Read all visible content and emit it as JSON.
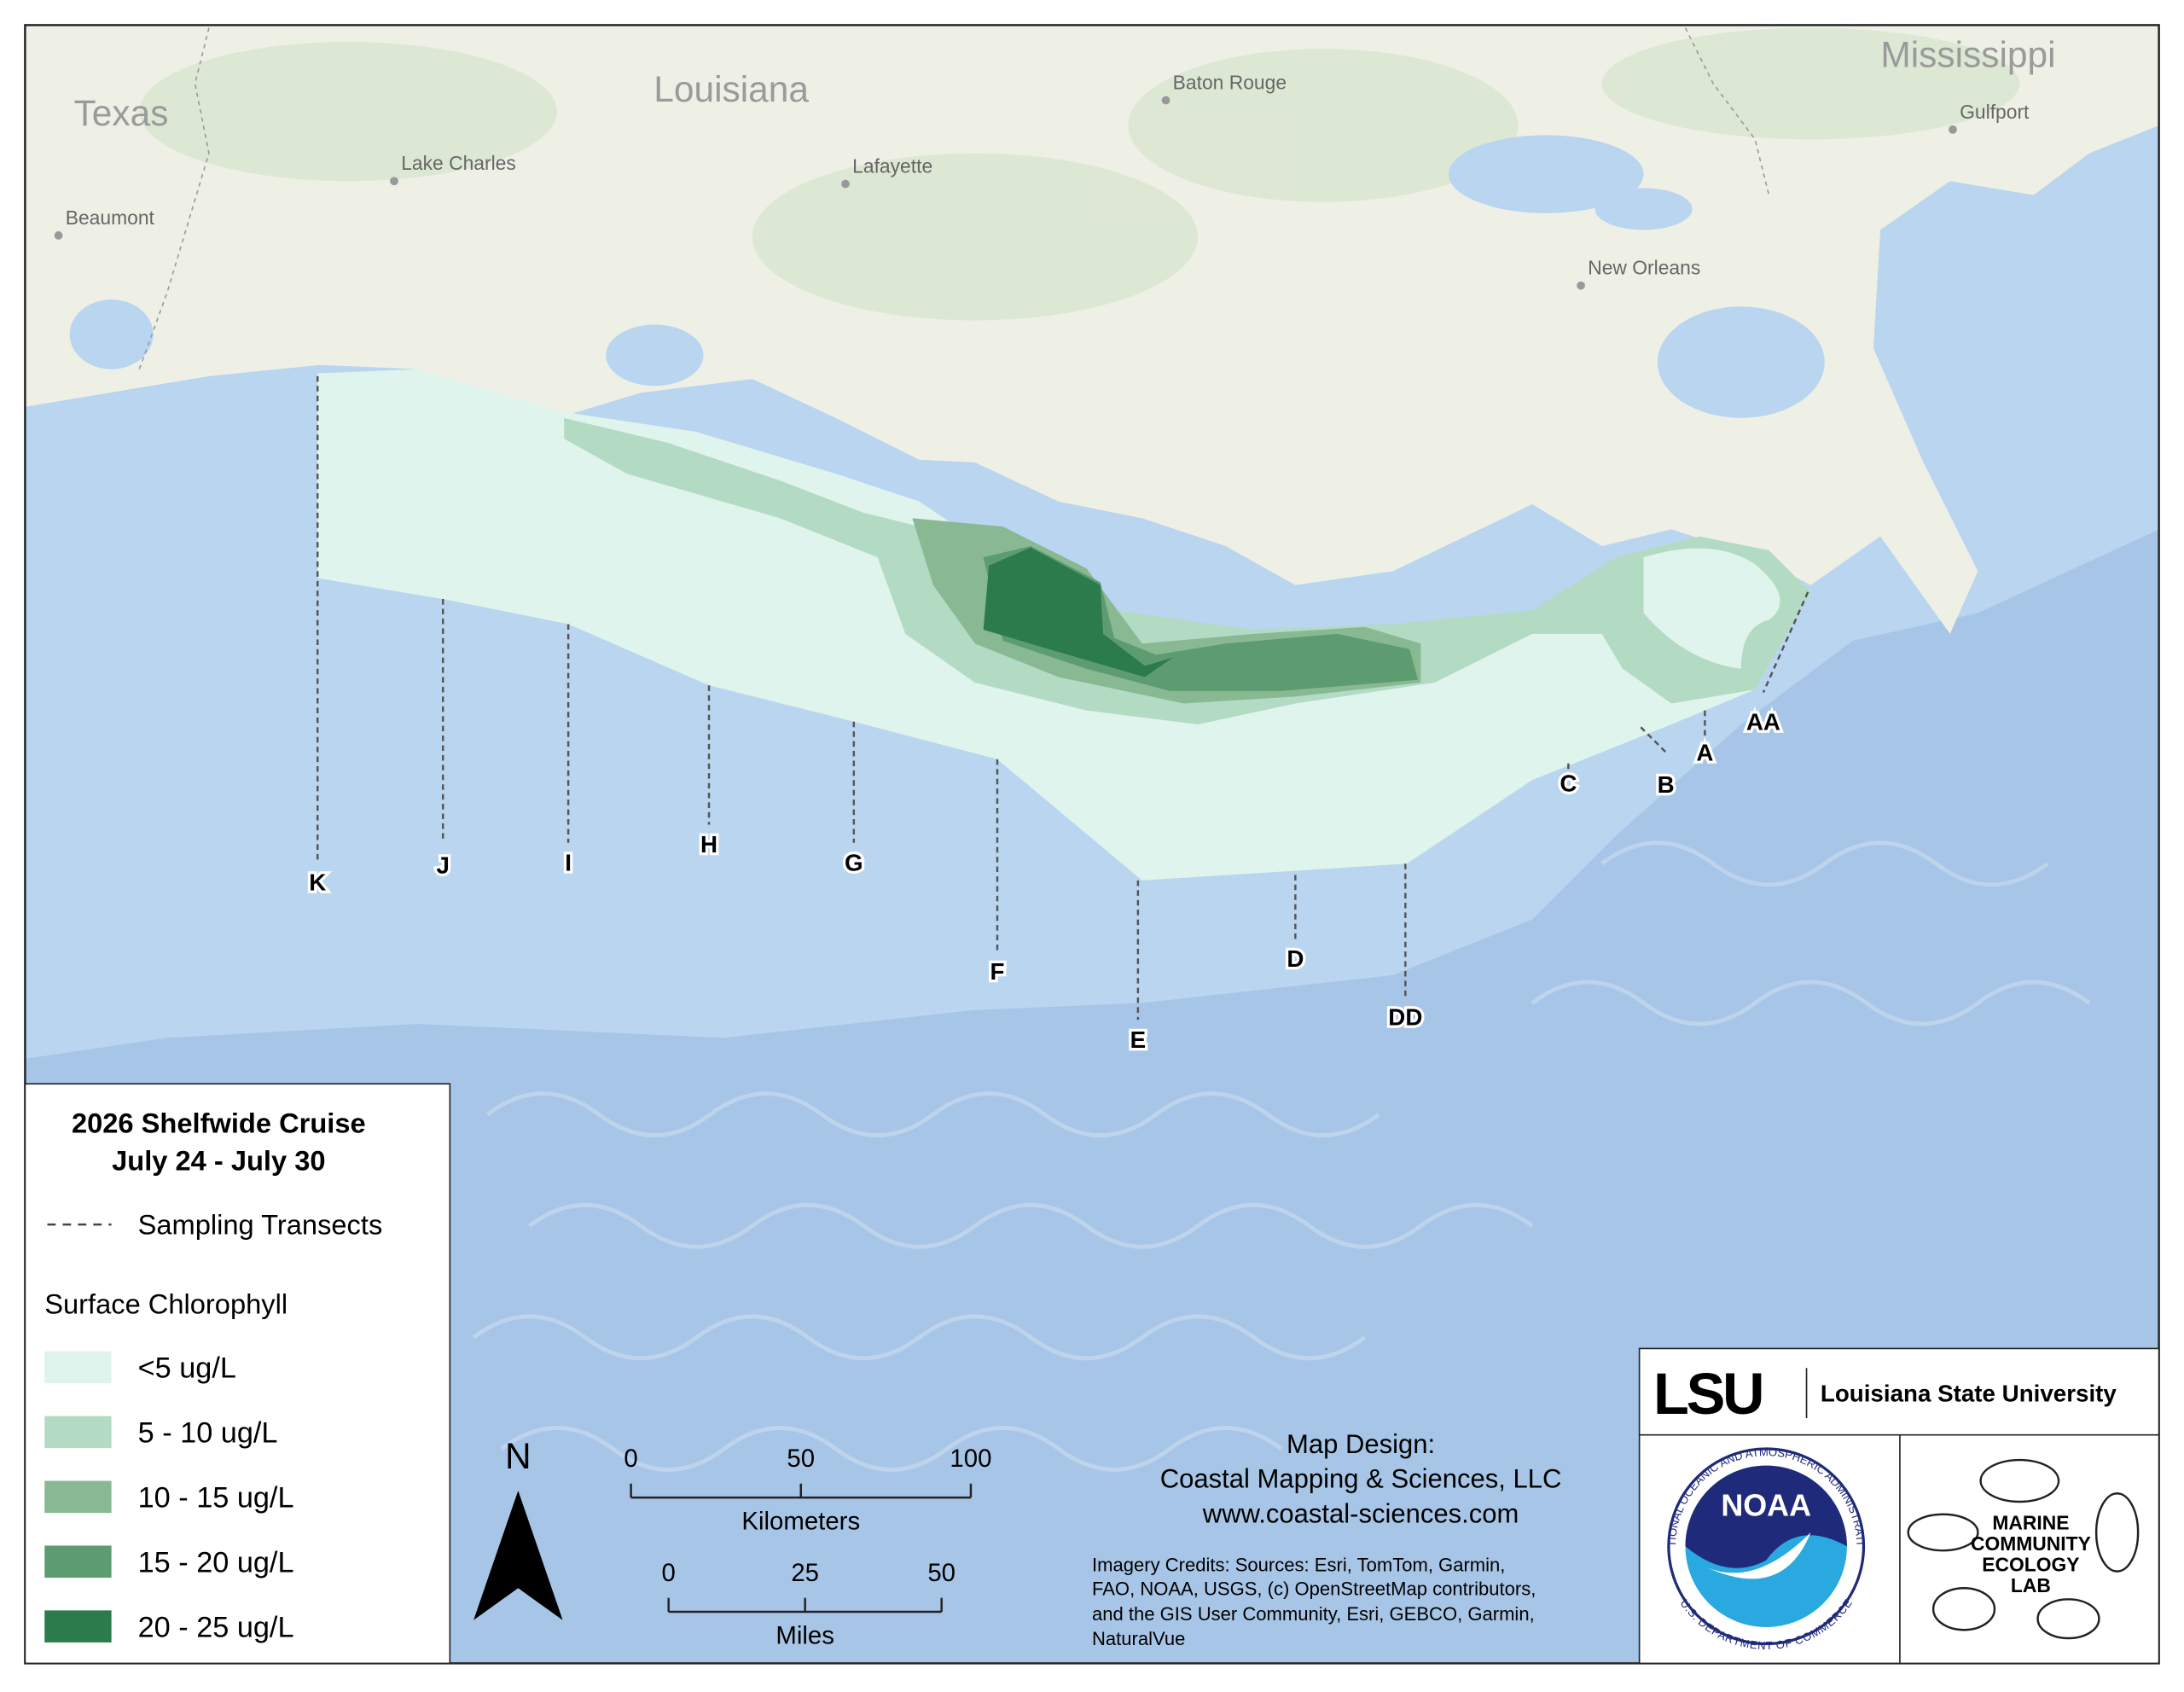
{
  "map": {
    "places": [
      {
        "label": "Texas",
        "kind": "state"
      },
      {
        "label": "Louisiana",
        "kind": "state"
      },
      {
        "label": "Mississippi",
        "kind": "state"
      },
      {
        "label": "Baton Rouge",
        "kind": "city"
      },
      {
        "label": "Lake Charles",
        "kind": "city"
      },
      {
        "label": "Lafayette",
        "kind": "city"
      },
      {
        "label": "Beaumont",
        "kind": "city"
      },
      {
        "label": "New Orleans",
        "kind": "city"
      },
      {
        "label": "Gulfport",
        "kind": "city"
      }
    ],
    "transects": [
      "K",
      "J",
      "I",
      "H",
      "G",
      "F",
      "E",
      "D",
      "DD",
      "C",
      "B",
      "A",
      "AA"
    ],
    "zones": [
      {
        "label": "<5 ug/L",
        "color": "#def4ec"
      },
      {
        "label": "5 - 10 ug/L",
        "color": "#b3dbc3"
      },
      {
        "label": "10 - 15 ug/L",
        "color": "#88b993"
      },
      {
        "label": "15 - 20 ug/L",
        "color": "#5c9c70"
      },
      {
        "label": "20 - 25 ug/L",
        "color": "#2c7b4c"
      }
    ]
  },
  "legend": {
    "title": "2026 Shelfwide Cruise",
    "dates": "July 24 - July 30",
    "transects_label": "Sampling Transects",
    "chlorophyll_label": "Surface Chlorophyll"
  },
  "north": "N",
  "scale_bars": [
    {
      "unit": "Kilometers",
      "ticks": [
        0,
        50,
        100
      ]
    },
    {
      "unit": "Miles",
      "ticks": [
        0,
        25,
        50
      ]
    }
  ],
  "credits": {
    "design": [
      "Map Design:",
      "Coastal Mapping & Sciences, LLC",
      "www.coastal-sciences.com"
    ],
    "imagery": [
      "Imagery Credits: Sources:  Esri, TomTom, Garmin,",
      "FAO, NOAA, USGS, (c) OpenStreetMap contributors,",
      "and the GIS User Community, Esri, GEBCO, Garmin,",
      "NaturalVue"
    ]
  },
  "logos": {
    "lsu": "LSU",
    "lsu_name": "Louisiana State University",
    "noaa": "NOAA",
    "noaa_top": "NATIONAL OCEANIC AND ATMOSPHERIC ADMINISTRATION",
    "noaa_bottom": "U.S. DEPARTMENT OF COMMERCE",
    "lab": [
      "MARINE",
      "COMMUNITY",
      "ECOLOGY",
      "LAB"
    ]
  }
}
